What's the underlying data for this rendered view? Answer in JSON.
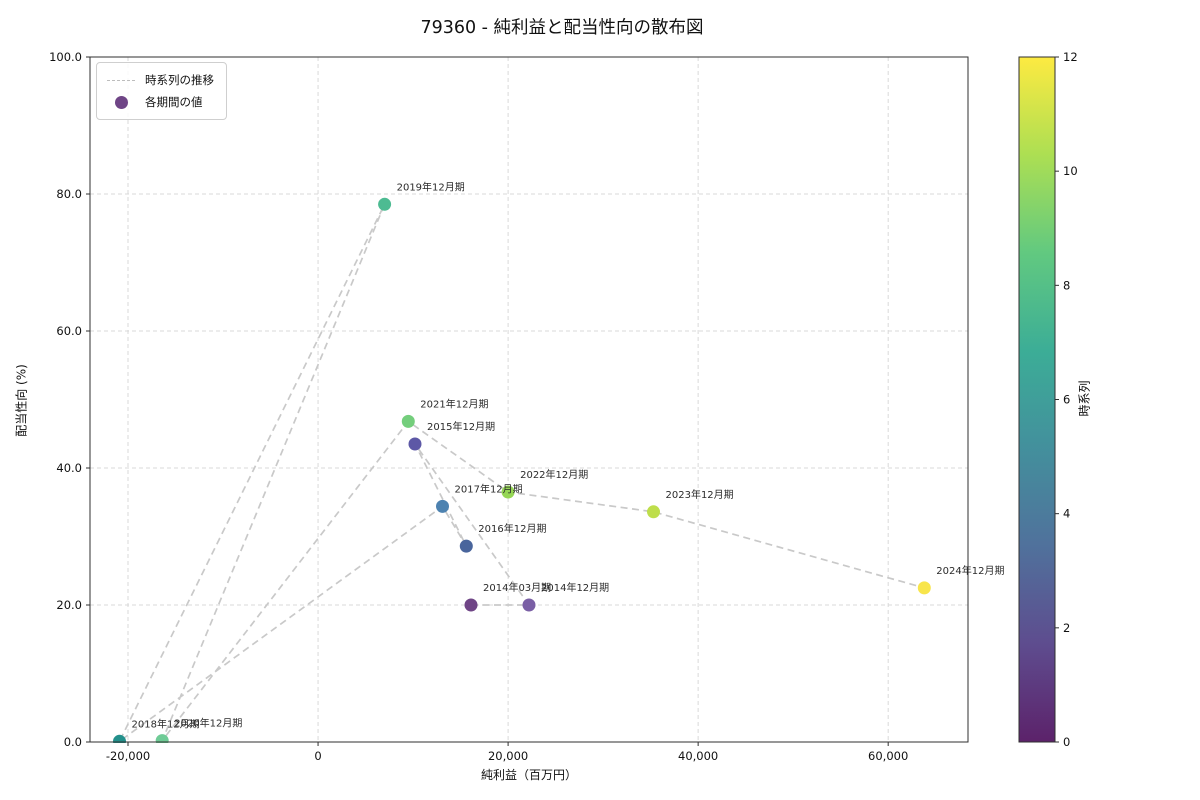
{
  "chart_data": {
    "type": "scatter",
    "title": "79360 - 純利益と配当性向の散布図",
    "xlabel": "純利益（百万円）",
    "ylabel": "配当性向 (%)",
    "xlim": [
      -24000,
      68400
    ],
    "ylim": [
      0,
      100
    ],
    "grid": true,
    "legend_position": "upper-left",
    "xticks": {
      "values": [
        -20000,
        0,
        20000,
        40000,
        60000
      ],
      "labels": [
        "-20,000",
        "0",
        "20,000",
        "40,000",
        "60,000"
      ]
    },
    "yticks": {
      "values": [
        0,
        20,
        40,
        60,
        80,
        100
      ],
      "labels": [
        "0.0",
        "20.0",
        "40.0",
        "60.0",
        "80.0",
        "100.0"
      ]
    },
    "series": [
      {
        "name": "各期間の値",
        "points": [
          {
            "label": "2014年03月期",
            "x": 16100,
            "y": 20.0,
            "t": 1,
            "color": "#6f4586"
          },
          {
            "label": "2014年12月期",
            "x": 22200,
            "y": 20.0,
            "t": 2,
            "color": "#7a5fa5"
          },
          {
            "label": "2015年12月期",
            "x": 10200,
            "y": 43.5,
            "t": 3,
            "color": "#5d58a6"
          },
          {
            "label": "2016年12月期",
            "x": 15600,
            "y": 28.6,
            "t": 4,
            "color": "#49659c"
          },
          {
            "label": "2017年12月期",
            "x": 13100,
            "y": 34.4,
            "t": 5,
            "color": "#4d82b0"
          },
          {
            "label": "2018年12月期",
            "x": -20900,
            "y": 0.1,
            "t": 6,
            "color": "#23908b"
          },
          {
            "label": "2019年12月期",
            "x": 7000,
            "y": 78.5,
            "t": 7,
            "color": "#4dbb92"
          },
          {
            "label": "2020年12月期",
            "x": -16400,
            "y": 0.2,
            "t": 8,
            "color": "#6fcb96"
          },
          {
            "label": "2021年12月期",
            "x": 9500,
            "y": 46.8,
            "t": 9,
            "color": "#74ce7c"
          },
          {
            "label": "2022年12月期",
            "x": 20000,
            "y": 36.5,
            "t": 10,
            "color": "#95d654"
          },
          {
            "label": "2023年12月期",
            "x": 35300,
            "y": 33.6,
            "t": 11,
            "color": "#bede4b"
          },
          {
            "label": "2024年12月期",
            "x": 63800,
            "y": 22.5,
            "t": 12,
            "color": "#f8e54b"
          }
        ]
      }
    ],
    "line": {
      "name": "時系列の推移",
      "style": "dashed",
      "color": "#c9c9c9"
    },
    "colorbar": {
      "label": "時系列",
      "min": 0,
      "max": 12,
      "ticks": [
        0,
        2,
        4,
        6,
        8,
        10,
        12
      ],
      "gradient": [
        "#440154",
        "#46327e",
        "#365c8d",
        "#277f8e",
        "#1fa187",
        "#4ac16d",
        "#a0da39",
        "#fde725"
      ]
    }
  },
  "legend": {
    "items": [
      {
        "label": "時系列の推移",
        "marker": "dashed-line",
        "color": "#bdbdbd"
      },
      {
        "label": "各期間の値",
        "marker": "dot",
        "color": "#6f4586"
      }
    ]
  }
}
